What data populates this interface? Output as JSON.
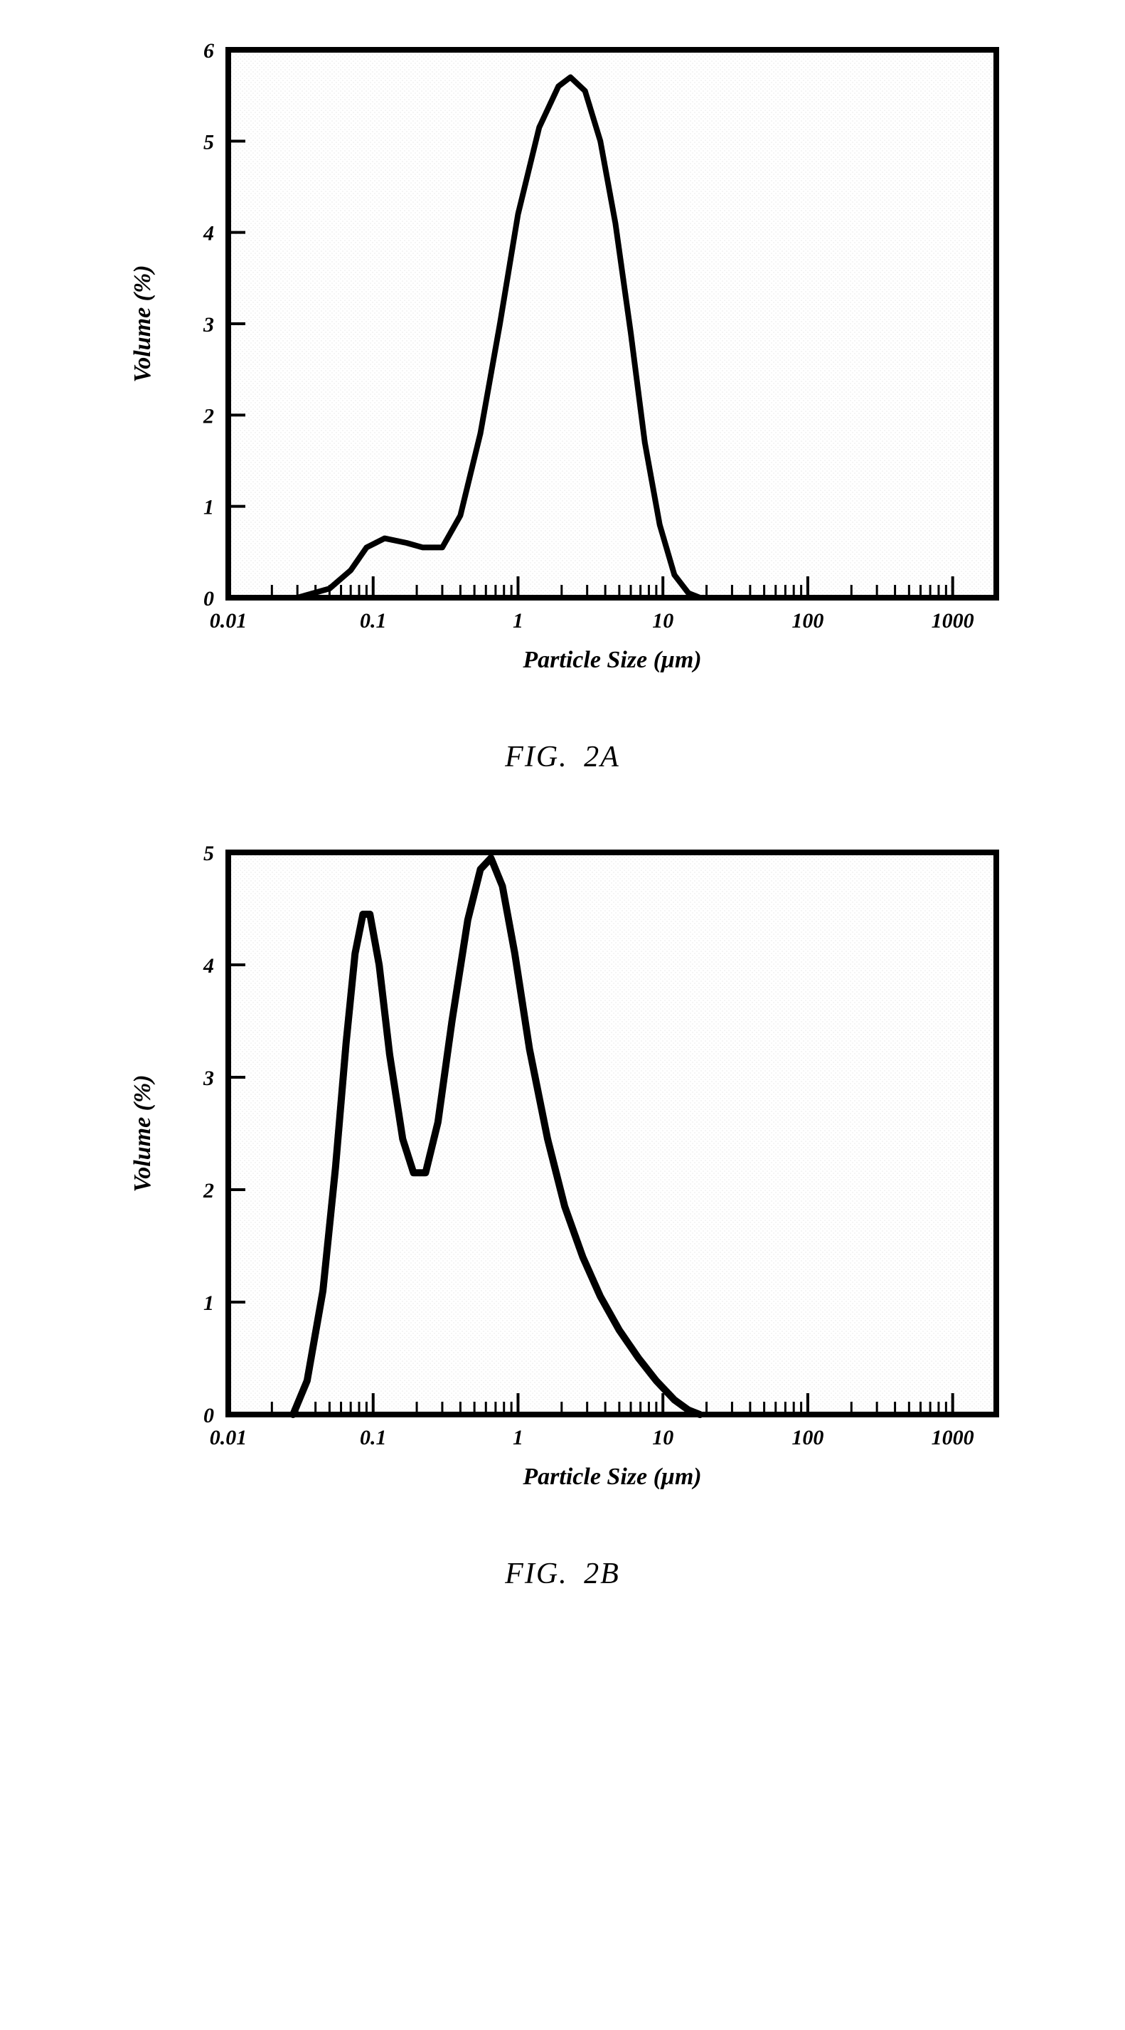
{
  "figures": {
    "A": {
      "caption": "FIG.  2A",
      "type": "line",
      "xlabel": "Particle Size  (μm)",
      "ylabel": "Volume  (%)",
      "xscale": "log",
      "xlim": [
        0.01,
        2000
      ],
      "ylim": [
        0,
        6
      ],
      "ytick_step": 1,
      "xtick_labels": [
        "0.01",
        "0.1",
        "1",
        "10",
        "100",
        "1000"
      ],
      "xtick_values": [
        0.01,
        0.1,
        1,
        10,
        100,
        1000
      ],
      "line_color": "#000000",
      "line_width": 8,
      "axis_color": "#000000",
      "axis_width": 4,
      "background_color": "#ffffff",
      "inner_texture_color": "#e9e9e9",
      "label_fontsize": 34,
      "tick_fontsize": 30,
      "font_style": "italic bold",
      "series": [
        {
          "x": 0.03,
          "y": 0.0
        },
        {
          "x": 0.05,
          "y": 0.1
        },
        {
          "x": 0.07,
          "y": 0.3
        },
        {
          "x": 0.09,
          "y": 0.55
        },
        {
          "x": 0.12,
          "y": 0.65
        },
        {
          "x": 0.17,
          "y": 0.6
        },
        {
          "x": 0.22,
          "y": 0.55
        },
        {
          "x": 0.3,
          "y": 0.55
        },
        {
          "x": 0.4,
          "y": 0.9
        },
        {
          "x": 0.55,
          "y": 1.8
        },
        {
          "x": 0.75,
          "y": 3.0
        },
        {
          "x": 1.0,
          "y": 4.2
        },
        {
          "x": 1.4,
          "y": 5.15
        },
        {
          "x": 1.9,
          "y": 5.6
        },
        {
          "x": 2.3,
          "y": 5.7
        },
        {
          "x": 2.9,
          "y": 5.55
        },
        {
          "x": 3.7,
          "y": 5.0
        },
        {
          "x": 4.7,
          "y": 4.1
        },
        {
          "x": 6.0,
          "y": 2.9
        },
        {
          "x": 7.5,
          "y": 1.7
        },
        {
          "x": 9.5,
          "y": 0.8
        },
        {
          "x": 12.0,
          "y": 0.25
        },
        {
          "x": 15.0,
          "y": 0.05
        },
        {
          "x": 18.0,
          "y": 0.0
        }
      ]
    },
    "B": {
      "caption": "FIG.  2B",
      "type": "line",
      "xlabel": "Particle Size  (μm)",
      "ylabel": "Volume  (%)",
      "xscale": "log",
      "xlim": [
        0.01,
        2000
      ],
      "ylim": [
        0,
        5
      ],
      "ytick_step": 1,
      "xtick_labels": [
        "0.01",
        "0.1",
        "1",
        "10",
        "100",
        "1000"
      ],
      "xtick_values": [
        0.01,
        0.1,
        1,
        10,
        100,
        1000
      ],
      "line_color": "#000000",
      "line_width": 10,
      "axis_color": "#000000",
      "axis_width": 4,
      "background_color": "#ffffff",
      "inner_texture_color": "#e9e9e9",
      "label_fontsize": 34,
      "tick_fontsize": 30,
      "font_style": "italic bold",
      "series": [
        {
          "x": 0.028,
          "y": 0.0
        },
        {
          "x": 0.035,
          "y": 0.3
        },
        {
          "x": 0.045,
          "y": 1.1
        },
        {
          "x": 0.055,
          "y": 2.2
        },
        {
          "x": 0.065,
          "y": 3.3
        },
        {
          "x": 0.075,
          "y": 4.1
        },
        {
          "x": 0.085,
          "y": 4.45
        },
        {
          "x": 0.095,
          "y": 4.45
        },
        {
          "x": 0.11,
          "y": 4.0
        },
        {
          "x": 0.13,
          "y": 3.2
        },
        {
          "x": 0.16,
          "y": 2.45
        },
        {
          "x": 0.19,
          "y": 2.15
        },
        {
          "x": 0.23,
          "y": 2.15
        },
        {
          "x": 0.28,
          "y": 2.6
        },
        {
          "x": 0.35,
          "y": 3.5
        },
        {
          "x": 0.45,
          "y": 4.4
        },
        {
          "x": 0.55,
          "y": 4.85
        },
        {
          "x": 0.65,
          "y": 4.95
        },
        {
          "x": 0.78,
          "y": 4.7
        },
        {
          "x": 0.95,
          "y": 4.1
        },
        {
          "x": 1.2,
          "y": 3.25
        },
        {
          "x": 1.6,
          "y": 2.45
        },
        {
          "x": 2.1,
          "y": 1.85
        },
        {
          "x": 2.8,
          "y": 1.4
        },
        {
          "x": 3.7,
          "y": 1.05
        },
        {
          "x": 5.0,
          "y": 0.75
        },
        {
          "x": 6.8,
          "y": 0.5
        },
        {
          "x": 9.0,
          "y": 0.3
        },
        {
          "x": 12.0,
          "y": 0.13
        },
        {
          "x": 15.0,
          "y": 0.04
        },
        {
          "x": 18.0,
          "y": 0.0
        }
      ]
    }
  }
}
